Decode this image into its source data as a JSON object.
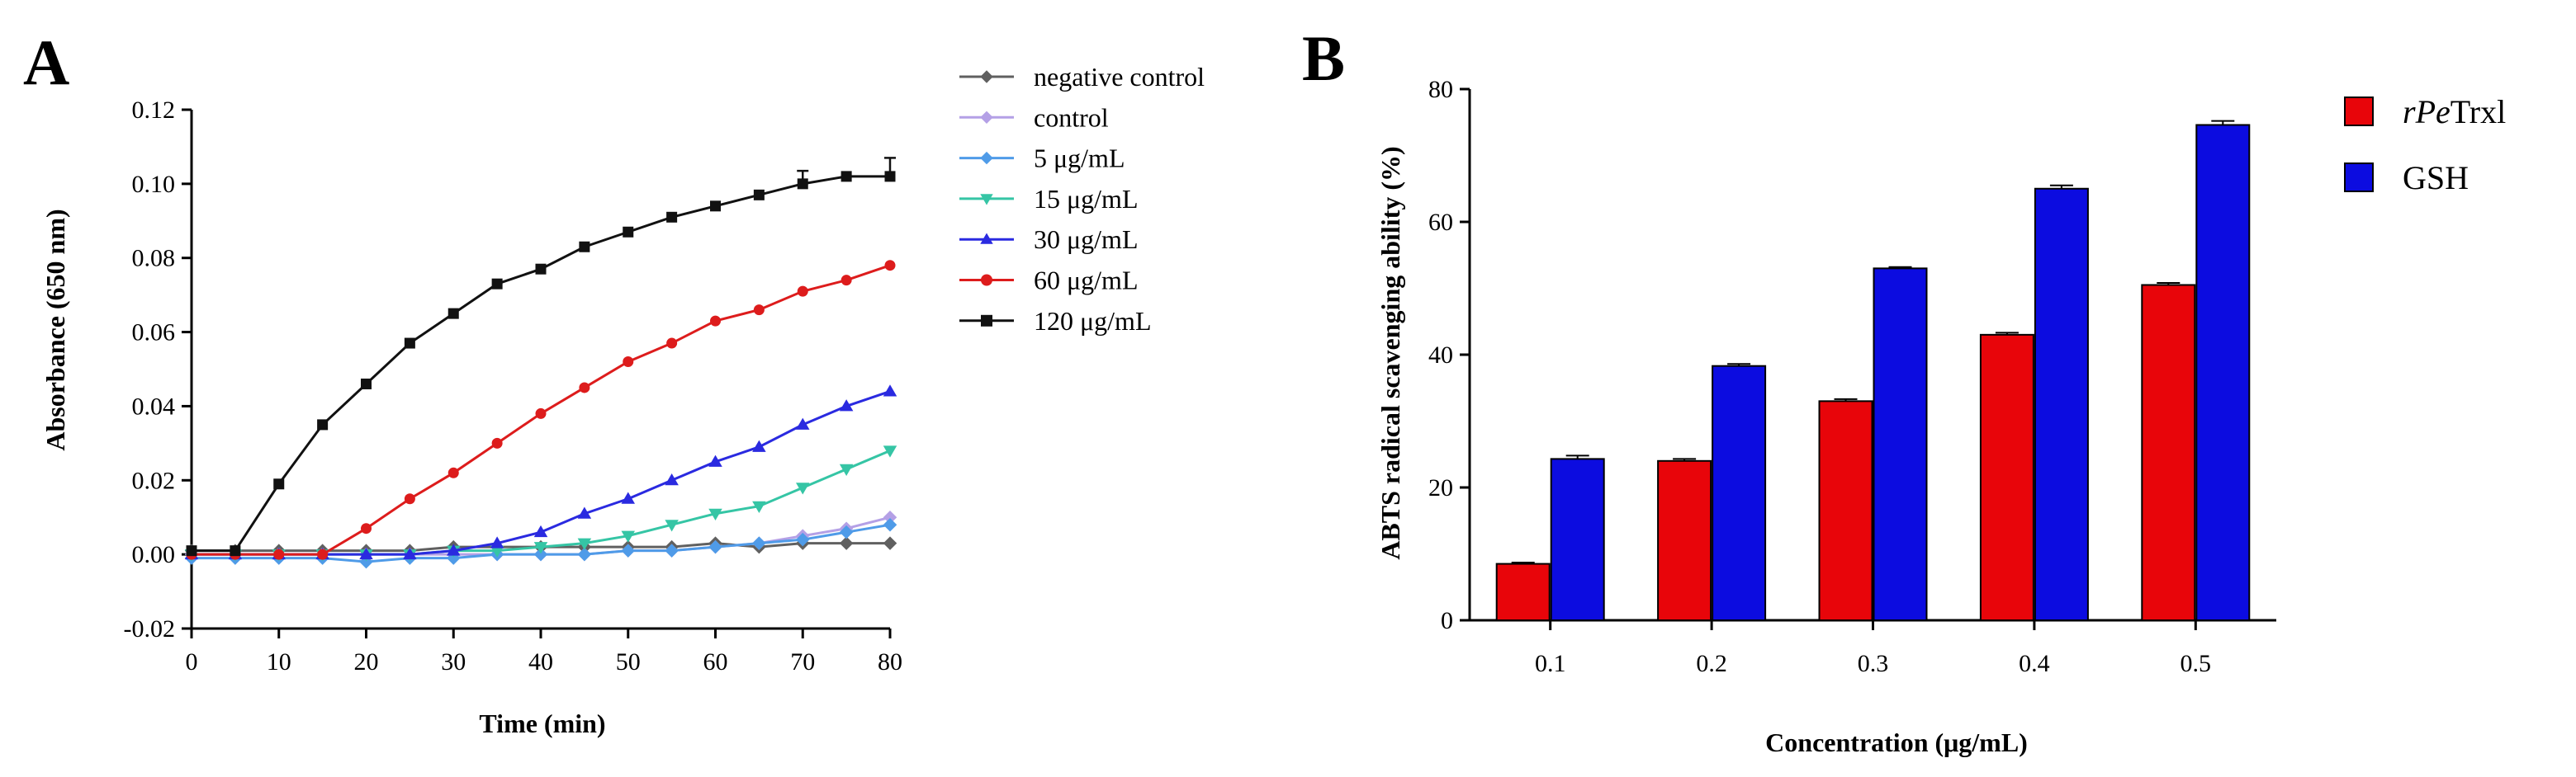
{
  "figure": {
    "panel_a_letter": "A",
    "panel_b_letter": "B"
  },
  "chart_data": [
    {
      "type": "line",
      "panel": "A",
      "title": "",
      "xlabel": "Time (min)",
      "ylabel": "Absorbance (650 nm)",
      "xlim": [
        0,
        80
      ],
      "ylim": [
        -0.02,
        0.12
      ],
      "xticks": [
        0,
        10,
        20,
        30,
        40,
        50,
        60,
        70,
        80
      ],
      "yticks": [
        -0.02,
        0.0,
        0.02,
        0.04,
        0.06,
        0.08,
        0.1,
        0.12
      ],
      "ytick_labels": [
        "-0.02",
        "0.00",
        "0.02",
        "0.04",
        "0.06",
        "0.08",
        "0.10",
        "0.12"
      ],
      "grid": false,
      "legend_position": "right",
      "x": [
        0,
        5,
        10,
        15,
        20,
        25,
        30,
        35,
        40,
        45,
        50,
        55,
        60,
        65,
        70,
        75,
        80
      ],
      "series": [
        {
          "name": "negative control",
          "color": "#606060",
          "marker": "diamond",
          "values": [
            0.001,
            0.001,
            0.001,
            0.001,
            0.001,
            0.001,
            0.002,
            0.002,
            0.002,
            0.002,
            0.002,
            0.002,
            0.003,
            0.002,
            0.003,
            0.003,
            0.003
          ]
        },
        {
          "name": "control",
          "color": "#b4a0e6",
          "marker": "diamond",
          "values": [
            0.0,
            0.0,
            0.0,
            0.0,
            0.0,
            0.0,
            0.0,
            0.0,
            0.0,
            0.0,
            0.001,
            0.001,
            0.002,
            0.003,
            0.005,
            0.007,
            0.01
          ]
        },
        {
          "name": "5 μg/mL",
          "color": "#4f9be8",
          "marker": "diamond",
          "values": [
            -0.001,
            -0.001,
            -0.001,
            -0.001,
            -0.002,
            -0.001,
            -0.001,
            0.0,
            0.0,
            0.0,
            0.001,
            0.001,
            0.002,
            0.003,
            0.004,
            0.006,
            0.008
          ]
        },
        {
          "name": "15 μg/mL",
          "color": "#35c5a5",
          "marker": "triangle-down",
          "values": [
            0.0,
            0.0,
            0.0,
            0.0,
            0.0,
            0.0,
            0.001,
            0.001,
            0.002,
            0.003,
            0.005,
            0.008,
            0.011,
            0.013,
            0.018,
            0.023,
            0.028
          ]
        },
        {
          "name": "30 μg/mL",
          "color": "#2a2ae0",
          "marker": "triangle-up",
          "values": [
            0.0,
            0.0,
            0.0,
            0.0,
            0.0,
            0.0,
            0.001,
            0.003,
            0.006,
            0.011,
            0.015,
            0.02,
            0.025,
            0.029,
            0.035,
            0.04,
            0.044
          ]
        },
        {
          "name": "60 μg/mL",
          "color": "#dd1c1c",
          "marker": "circle",
          "values": [
            0.0,
            0.0,
            0.0,
            0.0,
            0.007,
            0.015,
            0.022,
            0.03,
            0.038,
            0.045,
            0.052,
            0.057,
            0.063,
            0.066,
            0.071,
            0.074,
            0.078
          ]
        },
        {
          "name": "120 μg/mL",
          "color": "#111111",
          "marker": "square",
          "values": [
            0.001,
            0.001,
            0.019,
            0.035,
            0.046,
            0.057,
            0.065,
            0.073,
            0.077,
            0.083,
            0.087,
            0.091,
            0.094,
            0.097,
            0.1,
            0.102,
            0.102
          ]
        }
      ]
    },
    {
      "type": "bar",
      "panel": "B",
      "title": "",
      "xlabel": "Concentration (μg/mL)",
      "ylabel": "ABTS radical scavenging ability (%)",
      "ylim": [
        0,
        80
      ],
      "yticks": [
        0,
        20,
        40,
        60,
        80
      ],
      "grid": false,
      "legend_position": "top-right",
      "categories": [
        "0.1",
        "0.2",
        "0.3",
        "0.4",
        "0.5"
      ],
      "series": [
        {
          "name": "rPeTrxl",
          "name_parts": {
            "italic": "rPe",
            "regular": "Trxl"
          },
          "color": "#e8050a",
          "values": [
            8.5,
            24.0,
            33.0,
            43.0,
            50.5
          ],
          "errors": [
            0.2,
            0.3,
            0.3,
            0.3,
            0.3
          ]
        },
        {
          "name": "GSH",
          "color": "#0c0ce0",
          "values": [
            24.3,
            38.3,
            53.0,
            65.0,
            74.6
          ],
          "errors": [
            0.5,
            0.3,
            0.2,
            0.5,
            0.6
          ]
        }
      ]
    }
  ]
}
